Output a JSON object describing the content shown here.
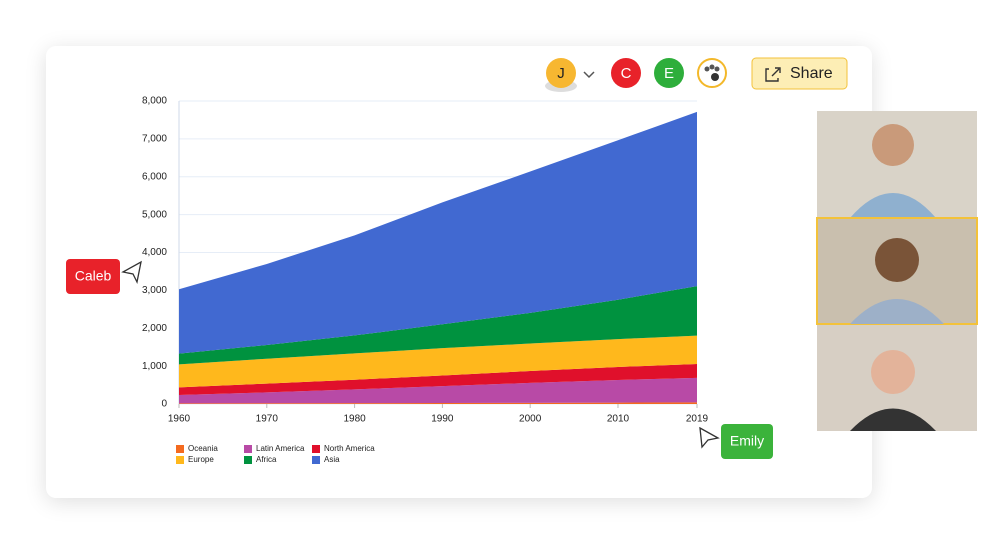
{
  "chart_data": {
    "type": "area",
    "x": [
      1960,
      1970,
      1980,
      1990,
      2000,
      2010,
      2019
    ],
    "xlim": [
      1960,
      2019
    ],
    "xticks": [
      1960,
      1970,
      1980,
      1990,
      2000,
      2010,
      2019
    ],
    "ylim": [
      0,
      8000
    ],
    "yticks": [
      0,
      {
        "value": 1000,
        "label": "1,000"
      },
      {
        "value": 2000,
        "label": "2,000"
      },
      {
        "value": 3000,
        "label": "3,000"
      },
      {
        "value": 4000,
        "label": "4,000"
      },
      {
        "value": 5000,
        "label": "5,000"
      },
      {
        "value": 6000,
        "label": "6,000"
      },
      {
        "value": 7000,
        "label": "7,000"
      },
      {
        "value": 8000,
        "label": "8,000"
      }
    ],
    "grid": true,
    "stacked": true,
    "series": [
      {
        "name": "Oceania",
        "color": "#f46a1f",
        "values": [
          16,
          20,
          23,
          27,
          31,
          37,
          42
        ]
      },
      {
        "name": "Latin America",
        "color": "#b84aa6",
        "values": [
          220,
          287,
          364,
          446,
          526,
          598,
          648
        ]
      },
      {
        "name": "North America",
        "color": "#e0102b",
        "values": [
          204,
          231,
          254,
          280,
          313,
          343,
          367
        ]
      },
      {
        "name": "Europe",
        "color": "#ffb81c",
        "values": [
          606,
          657,
          694,
          721,
          726,
          736,
          747
        ]
      },
      {
        "name": "Africa",
        "color": "#00923f",
        "values": [
          283,
          363,
          476,
          630,
          811,
          1039,
          1308
        ]
      },
      {
        "name": "Asia",
        "color": "#4169d1",
        "values": [
          1700,
          2140,
          2640,
          3220,
          3730,
          4210,
          4600
        ]
      }
    ],
    "legend_order": [
      0,
      1,
      2,
      3,
      4,
      5
    ]
  },
  "ui": {
    "avatars": [
      "J",
      "C",
      "E"
    ],
    "share": "Share",
    "cursors": [
      "Caleb",
      "Emily"
    ]
  }
}
